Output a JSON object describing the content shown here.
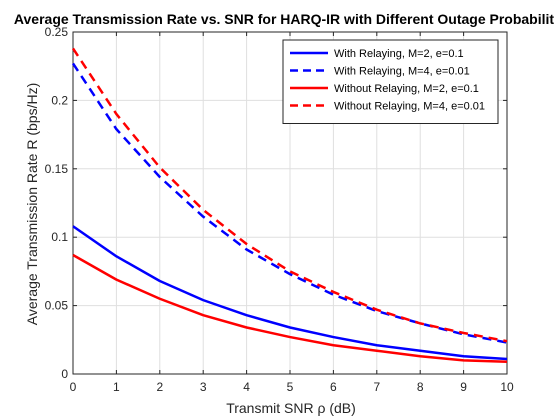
{
  "chart_data": {
    "type": "line",
    "title": "Average Transmission Rate vs. SNR for HARQ-IR with Different Outage Probabilit",
    "xlabel": "Transmit SNR ρ (dB)",
    "ylabel": "Average Transmission Rate R (bps/Hz)",
    "xlim": [
      0,
      10
    ],
    "ylim": [
      0,
      0.25
    ],
    "xticks": [
      "0",
      "1",
      "2",
      "3",
      "4",
      "5",
      "6",
      "7",
      "8",
      "9",
      "10"
    ],
    "yticks": [
      "0",
      "0.05",
      "0.1",
      "0.15",
      "0.2",
      "0.25"
    ],
    "grid": true,
    "legend_position": "top-right",
    "x": [
      0,
      1,
      2,
      3,
      4,
      5,
      6,
      7,
      8,
      9,
      10
    ],
    "series": [
      {
        "name": "With Relaying, M=2, e=0.1",
        "color": "#0000ff",
        "style": "solid",
        "values": [
          0.108,
          0.086,
          0.068,
          0.054,
          0.043,
          0.034,
          0.027,
          0.021,
          0.017,
          0.013,
          0.011
        ]
      },
      {
        "name": "With Relaying, M=4, e=0.01",
        "color": "#0000ff",
        "style": "dashed",
        "values": [
          0.227,
          0.179,
          0.144,
          0.115,
          0.091,
          0.073,
          0.058,
          0.046,
          0.037,
          0.029,
          0.023
        ]
      },
      {
        "name": "Without Relaying, M=2, e=0.1",
        "color": "#ff0000",
        "style": "solid",
        "values": [
          0.087,
          0.069,
          0.055,
          0.043,
          0.034,
          0.027,
          0.021,
          0.017,
          0.013,
          0.01,
          0.009
        ]
      },
      {
        "name": "Without Relaying, M=4, e=0.01",
        "color": "#ff0000",
        "style": "dashed",
        "values": [
          0.238,
          0.19,
          0.151,
          0.12,
          0.095,
          0.075,
          0.06,
          0.047,
          0.037,
          0.03,
          0.024
        ]
      }
    ]
  }
}
